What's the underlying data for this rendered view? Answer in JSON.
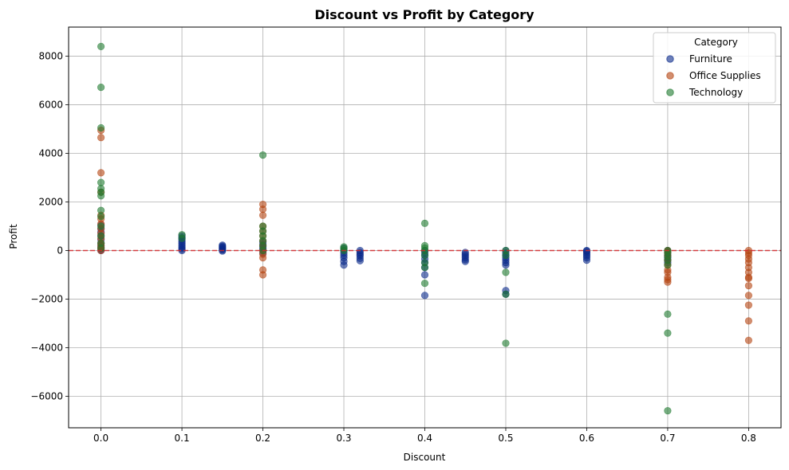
{
  "chart_data": {
    "type": "scatter",
    "title": "Discount vs Profit by Category",
    "xlabel": "Discount",
    "ylabel": "Profit",
    "xlim": [
      -0.04,
      0.84
    ],
    "ylim": [
      -7300,
      9200
    ],
    "xticks": [
      0.0,
      0.1,
      0.2,
      0.3,
      0.4,
      0.5,
      0.6,
      0.7,
      0.8
    ],
    "xtick_labels": [
      "0.0",
      "0.1",
      "0.2",
      "0.3",
      "0.4",
      "0.5",
      "0.6",
      "0.7",
      "0.8"
    ],
    "yticks": [
      -6000,
      -4000,
      -2000,
      0,
      2000,
      4000,
      6000,
      8000
    ],
    "ytick_labels": [
      "−6000",
      "−4000",
      "−2000",
      "0",
      "2000",
      "4000",
      "6000",
      "8000"
    ],
    "grid": true,
    "reference_line": {
      "y": 0,
      "color": "#d62728",
      "style": "dashed"
    },
    "legend": {
      "title": "Category",
      "placement": "top-right"
    },
    "series": [
      {
        "name": "Furniture",
        "color": "#0a2a8a",
        "points": [
          [
            0.0,
            0
          ],
          [
            0.0,
            50
          ],
          [
            0.0,
            120
          ],
          [
            0.0,
            200
          ],
          [
            0.0,
            300
          ],
          [
            0.0,
            450
          ],
          [
            0.0,
            600
          ],
          [
            0.0,
            750
          ],
          [
            0.0,
            900
          ],
          [
            0.0,
            1050
          ],
          [
            0.1,
            0
          ],
          [
            0.1,
            60
          ],
          [
            0.1,
            130
          ],
          [
            0.1,
            200
          ],
          [
            0.1,
            280
          ],
          [
            0.1,
            360
          ],
          [
            0.1,
            440
          ],
          [
            0.1,
            520
          ],
          [
            0.1,
            600
          ],
          [
            0.15,
            -20
          ],
          [
            0.15,
            20
          ],
          [
            0.15,
            60
          ],
          [
            0.15,
            100
          ],
          [
            0.15,
            140
          ],
          [
            0.15,
            180
          ],
          [
            0.15,
            220
          ],
          [
            0.2,
            -100
          ],
          [
            0.2,
            0
          ],
          [
            0.2,
            80
          ],
          [
            0.2,
            160
          ],
          [
            0.2,
            250
          ],
          [
            0.2,
            350
          ],
          [
            0.3,
            -600
          ],
          [
            0.3,
            -450
          ],
          [
            0.3,
            -300
          ],
          [
            0.3,
            -200
          ],
          [
            0.3,
            -100
          ],
          [
            0.3,
            0
          ],
          [
            0.3,
            100
          ],
          [
            0.32,
            -420
          ],
          [
            0.32,
            -320
          ],
          [
            0.32,
            -220
          ],
          [
            0.32,
            -150
          ],
          [
            0.32,
            -80
          ],
          [
            0.32,
            0
          ],
          [
            0.4,
            -1850
          ],
          [
            0.4,
            -1000
          ],
          [
            0.4,
            -700
          ],
          [
            0.4,
            -500
          ],
          [
            0.4,
            -350
          ],
          [
            0.4,
            -200
          ],
          [
            0.4,
            -100
          ],
          [
            0.4,
            0
          ],
          [
            0.45,
            -450
          ],
          [
            0.45,
            -380
          ],
          [
            0.45,
            -300
          ],
          [
            0.45,
            -220
          ],
          [
            0.45,
            -150
          ],
          [
            0.45,
            -80
          ],
          [
            0.5,
            -1800
          ],
          [
            0.5,
            -1650
          ],
          [
            0.5,
            -600
          ],
          [
            0.5,
            -500
          ],
          [
            0.5,
            -400
          ],
          [
            0.5,
            -300
          ],
          [
            0.5,
            -200
          ],
          [
            0.5,
            -100
          ],
          [
            0.5,
            0
          ],
          [
            0.6,
            -400
          ],
          [
            0.6,
            -300
          ],
          [
            0.6,
            -220
          ],
          [
            0.6,
            -150
          ],
          [
            0.6,
            -80
          ],
          [
            0.6,
            -20
          ],
          [
            0.6,
            0
          ],
          [
            0.7,
            -500
          ],
          [
            0.7,
            -400
          ],
          [
            0.7,
            -300
          ],
          [
            0.7,
            -200
          ],
          [
            0.7,
            -100
          ],
          [
            0.7,
            0
          ]
        ]
      },
      {
        "name": "Office Supplies",
        "color": "#b4420f",
        "points": [
          [
            0.0,
            0
          ],
          [
            0.0,
            100
          ],
          [
            0.0,
            200
          ],
          [
            0.0,
            300
          ],
          [
            0.0,
            500
          ],
          [
            0.0,
            700
          ],
          [
            0.0,
            900
          ],
          [
            0.0,
            1100
          ],
          [
            0.0,
            1300
          ],
          [
            0.0,
            1450
          ],
          [
            0.0,
            2400
          ],
          [
            0.0,
            3200
          ],
          [
            0.0,
            4650
          ],
          [
            0.0,
            4950
          ],
          [
            0.2,
            -1000
          ],
          [
            0.2,
            -800
          ],
          [
            0.2,
            -300
          ],
          [
            0.2,
            -150
          ],
          [
            0.2,
            0
          ],
          [
            0.2,
            200
          ],
          [
            0.2,
            400
          ],
          [
            0.2,
            600
          ],
          [
            0.2,
            800
          ],
          [
            0.2,
            1000
          ],
          [
            0.2,
            1450
          ],
          [
            0.2,
            1700
          ],
          [
            0.2,
            1900
          ],
          [
            0.7,
            -1300
          ],
          [
            0.7,
            -1200
          ],
          [
            0.7,
            -1100
          ],
          [
            0.7,
            -900
          ],
          [
            0.7,
            -800
          ],
          [
            0.7,
            -600
          ],
          [
            0.7,
            -400
          ],
          [
            0.7,
            -200
          ],
          [
            0.7,
            -50
          ],
          [
            0.7,
            0
          ],
          [
            0.8,
            -3700
          ],
          [
            0.8,
            -2900
          ],
          [
            0.8,
            -2250
          ],
          [
            0.8,
            -1850
          ],
          [
            0.8,
            -1450
          ],
          [
            0.8,
            -1150
          ],
          [
            0.8,
            -1100
          ],
          [
            0.8,
            -900
          ],
          [
            0.8,
            -700
          ],
          [
            0.8,
            -500
          ],
          [
            0.8,
            -350
          ],
          [
            0.8,
            -200
          ],
          [
            0.8,
            -100
          ],
          [
            0.8,
            0
          ]
        ]
      },
      {
        "name": "Technology",
        "color": "#1e7a2e",
        "points": [
          [
            0.0,
            8400
          ],
          [
            0.0,
            6720
          ],
          [
            0.0,
            5050
          ],
          [
            0.0,
            2800
          ],
          [
            0.0,
            2550
          ],
          [
            0.0,
            2400
          ],
          [
            0.0,
            2250
          ],
          [
            0.0,
            1650
          ],
          [
            0.0,
            1400
          ],
          [
            0.0,
            1000
          ],
          [
            0.0,
            600
          ],
          [
            0.0,
            300
          ],
          [
            0.0,
            100
          ],
          [
            0.1,
            650
          ],
          [
            0.1,
            500
          ],
          [
            0.2,
            3930
          ],
          [
            0.2,
            1000
          ],
          [
            0.2,
            800
          ],
          [
            0.2,
            600
          ],
          [
            0.2,
            400
          ],
          [
            0.2,
            200
          ],
          [
            0.2,
            0
          ],
          [
            0.3,
            150
          ],
          [
            0.3,
            80
          ],
          [
            0.3,
            0
          ],
          [
            0.4,
            1120
          ],
          [
            0.4,
            200
          ],
          [
            0.4,
            100
          ],
          [
            0.4,
            0
          ],
          [
            0.4,
            -200
          ],
          [
            0.4,
            -500
          ],
          [
            0.4,
            -700
          ],
          [
            0.4,
            -1350
          ],
          [
            0.5,
            -3820
          ],
          [
            0.5,
            -1800
          ],
          [
            0.5,
            -900
          ],
          [
            0.5,
            -200
          ],
          [
            0.5,
            0
          ],
          [
            0.7,
            -6600
          ],
          [
            0.7,
            -3400
          ],
          [
            0.7,
            -2620
          ],
          [
            0.7,
            -600
          ],
          [
            0.7,
            -400
          ],
          [
            0.7,
            -250
          ],
          [
            0.7,
            -100
          ],
          [
            0.7,
            0
          ]
        ]
      }
    ]
  }
}
